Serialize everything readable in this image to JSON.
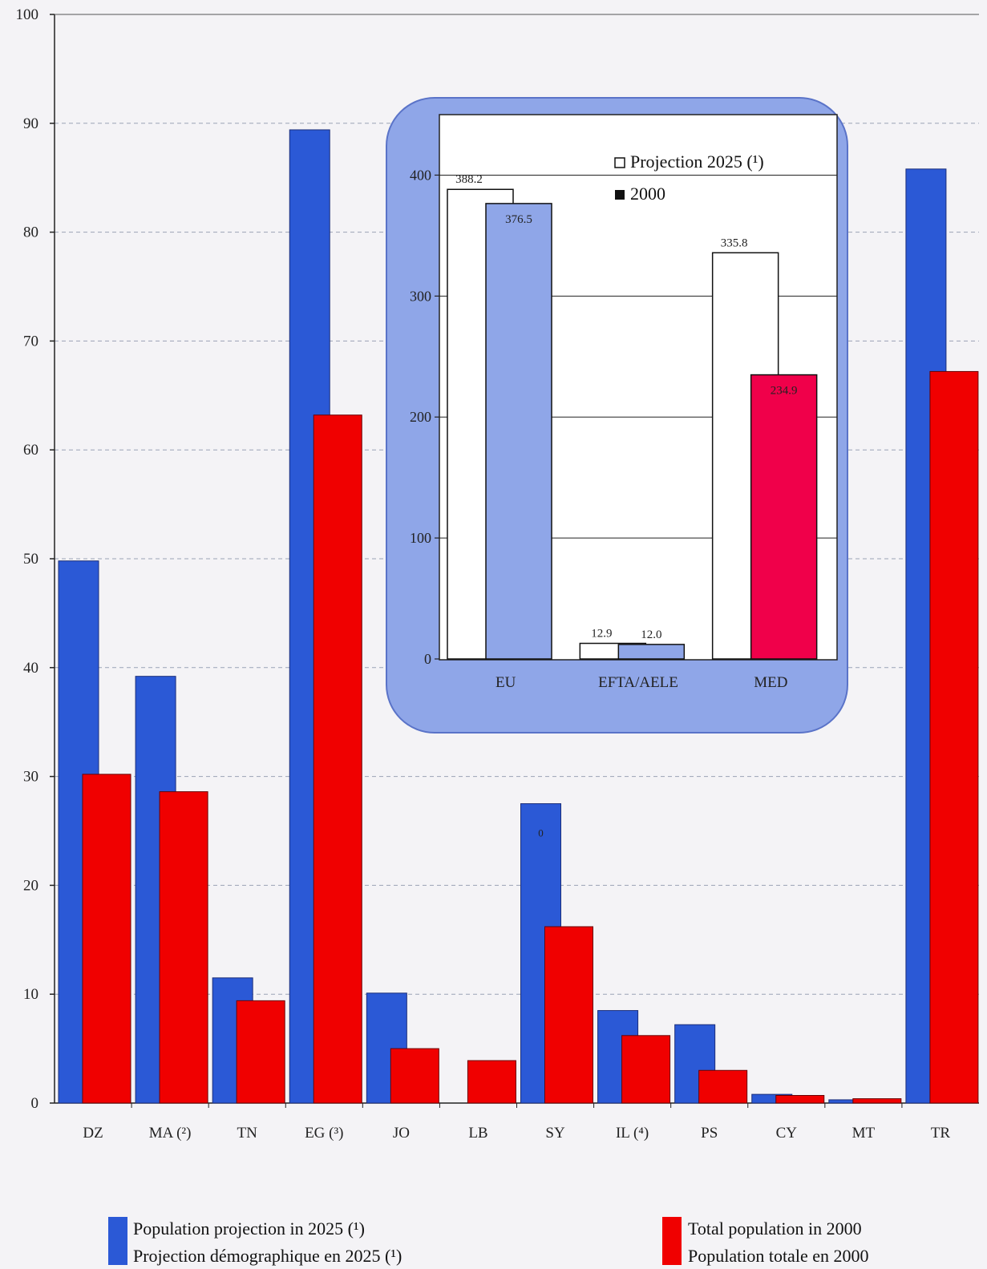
{
  "chart_data": [
    {
      "type": "bar",
      "categories": [
        "DZ",
        "MA (²)",
        "TN",
        "EG (³)",
        "JO",
        "LB",
        "SY",
        "IL (⁴)",
        "PS",
        "CY",
        "MT",
        "TR"
      ],
      "series": [
        {
          "name": "Population projection in 2025 (¹) / Projection démographique en 2025 (¹)",
          "color": "#2b59d6",
          "values": [
            49.8,
            39.2,
            11.5,
            89.4,
            10.1,
            null,
            27.5,
            8.5,
            7.2,
            0.8,
            0.3,
            85.8
          ]
        },
        {
          "name": "Total population in 2000 / Population totale en 2000",
          "color": "#f00000",
          "values": [
            30.2,
            28.6,
            9.4,
            63.2,
            5.0,
            3.9,
            16.2,
            6.2,
            3.0,
            0.7,
            0.4,
            67.2
          ]
        }
      ],
      "yticks": [
        "0",
        "10",
        "20",
        "30",
        "40",
        "50",
        "60",
        "70",
        "80",
        "90",
        "100"
      ],
      "ylim": [
        0,
        100
      ],
      "grid": true,
      "annotation": "0"
    },
    {
      "type": "bar",
      "categories": [
        "EU",
        "EFTA/AELE",
        "MED"
      ],
      "series": [
        {
          "name": "Projection 2025 (¹)",
          "color": "#ffffff",
          "values": [
            388.2,
            12.9,
            335.8
          ],
          "labels": [
            "388.2",
            "12.9",
            "335.8"
          ]
        },
        {
          "name": "2000",
          "color": "#8fa6e8",
          "values": [
            376.5,
            12.0,
            234.9
          ],
          "labels": [
            "376.5",
            "12.0",
            "234.9"
          ]
        }
      ],
      "yticks": [
        "0",
        "100",
        "200",
        "300",
        "400"
      ],
      "ylim": [
        0,
        450
      ],
      "grid": true,
      "legend": {
        "position": "top-right",
        "items": [
          "Projection 2025 (¹)",
          "2000"
        ]
      }
    }
  ],
  "legend": {
    "blue": {
      "color": "#2b59d6",
      "line1": "Population projection in 2025  (¹)",
      "line2": "Projection démographique en 2025  (¹)"
    },
    "red": {
      "color": "#f00000",
      "line1": "Total population in 2000",
      "line2": "Population totale en 2000"
    }
  },
  "colors": {
    "inset_panel": "#8fa6e8",
    "inset_med_bar": "#f0004a"
  }
}
